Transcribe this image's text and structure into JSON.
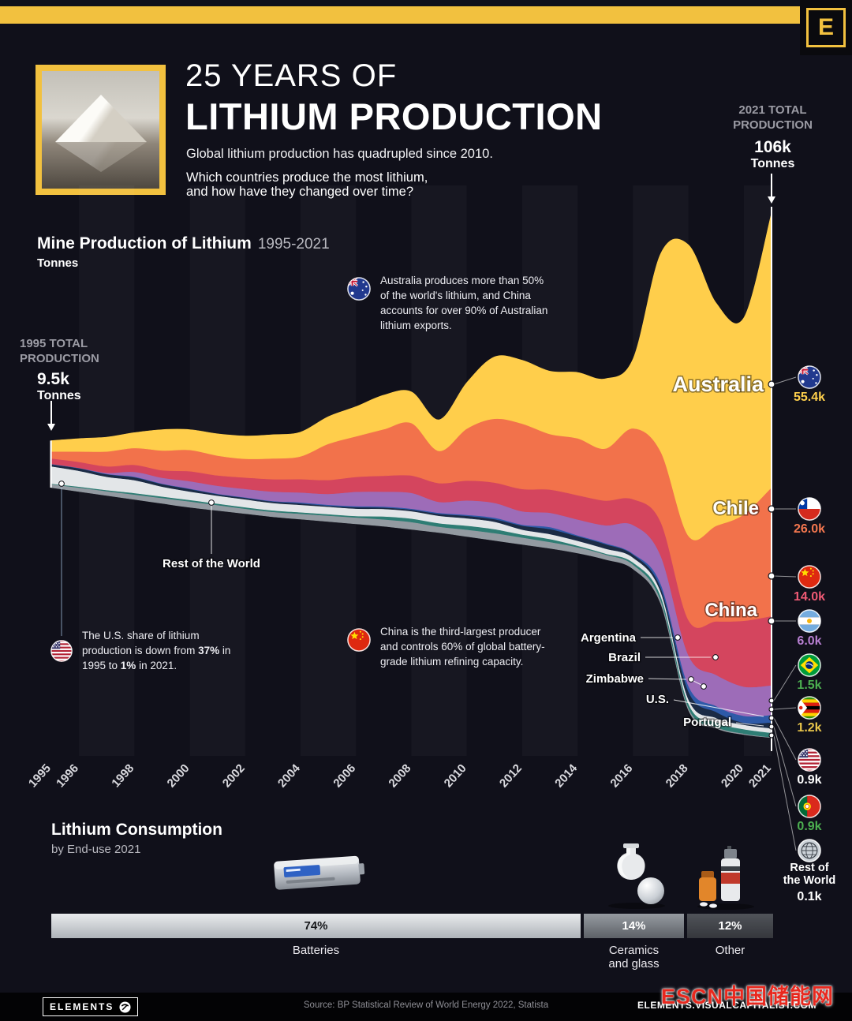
{
  "meta": {
    "brand_letter": "E",
    "accent": "#F2C13F",
    "background": "#10101a"
  },
  "header": {
    "title_line1": "25 YEARS OF",
    "title_line2": "LITHIUM PRODUCTION",
    "subtitle": "Global lithium production has quadrupled since 2010.",
    "question_line1": "Which countries produce the most lithium,",
    "question_line2": "and how have they changed over time?",
    "total_2021": {
      "label_line1": "2021 TOTAL",
      "label_line2": "PRODUCTION",
      "value": "106k",
      "unit": "Tonnes"
    }
  },
  "chart_header": {
    "title": "Mine Production of Lithium",
    "range": "1995-2021",
    "unit": "Tonnes"
  },
  "total_1995": {
    "label_line1": "1995 TOTAL",
    "label_line2": "PRODUCTION",
    "value": "9.5k",
    "unit": "Tonnes"
  },
  "notes": {
    "australia": "Australia produces more than 50% of the world's lithium, and China accounts for over 90% of Australian lithium exports.",
    "china": "China is the third-largest producer and controls 60% of global battery-grade lithium refining capacity.",
    "us": {
      "p1": "The U.S. share of lithium production is down from ",
      "b1": "37%",
      "p2": " in 1995 to ",
      "b2": "1%",
      "p3": " in 2021."
    }
  },
  "chart_data": {
    "type": "area",
    "stacked": true,
    "title": "Mine Production of Lithium",
    "range_label": "1995-2021",
    "unit": "Tonnes (thousands)",
    "x_start": 1995,
    "x_end": 2021,
    "x_ticks": [
      "1995",
      "1996",
      "1998",
      "2000",
      "2002",
      "2004",
      "2006",
      "2008",
      "2010",
      "2012",
      "2014",
      "2016",
      "2018",
      "2020",
      "2021"
    ],
    "totals": {
      "start_year": 1995,
      "start_value_k": 9.5,
      "end_year": 2021,
      "end_value_k": 106
    },
    "legend_world_name_lines": [
      "Rest of",
      "the World"
    ],
    "series": [
      {
        "name": "Australia",
        "flag": "au",
        "color": "#FFCE4B",
        "value_label": "55.4k",
        "value_color": "#FFD04C",
        "values": [
          2.2,
          2.6,
          2.9,
          3.1,
          4.2,
          4.1,
          4.4,
          4.6,
          4.8,
          4.9,
          5.5,
          6.0,
          6.9,
          6.3,
          6.3,
          9.3,
          12.5,
          12.8,
          12.7,
          13.3,
          14.1,
          14.0,
          40.0,
          58.8,
          45.0,
          39.7,
          55.4
        ]
      },
      {
        "name": "Chile",
        "flag": "cl",
        "color": "#F2724B",
        "value_label": "26.0k",
        "value_color": "#F4774F",
        "values": [
          1.4,
          2.1,
          3.0,
          3.4,
          4.0,
          4.3,
          4.0,
          3.8,
          4.2,
          4.6,
          7.3,
          8.2,
          9.4,
          10.6,
          6.5,
          10.5,
          12.9,
          13.2,
          11.2,
          11.5,
          10.5,
          14.3,
          14.2,
          17.0,
          19.3,
          21.5,
          26.0
        ]
      },
      {
        "name": "China",
        "flag": "cn",
        "color": "#D4455E",
        "value_label": "14.0k",
        "value_color": "#EF5A74",
        "values": [
          1.1,
          1.2,
          1.3,
          1.4,
          1.5,
          2.0,
          2.1,
          2.3,
          2.5,
          2.7,
          2.8,
          3.0,
          3.2,
          3.5,
          3.8,
          4.0,
          4.1,
          4.5,
          4.7,
          4.9,
          5.0,
          5.2,
          6.8,
          7.1,
          10.8,
          13.3,
          14.0
        ]
      },
      {
        "name": "Argentina",
        "flag": "ar",
        "color": "#9D6CB8",
        "value_label": "6.0k",
        "value_color": "#B77FD1",
        "values": [
          0.0,
          0.0,
          0.2,
          1.0,
          1.2,
          1.5,
          1.6,
          1.7,
          1.9,
          2.0,
          2.2,
          2.9,
          3.0,
          3.2,
          2.2,
          2.9,
          3.0,
          2.7,
          2.9,
          3.2,
          3.6,
          5.8,
          5.7,
          6.2,
          6.3,
          5.9,
          6.0
        ]
      },
      {
        "name": "Brazil",
        "flag": "br",
        "color": "#2E5AA8",
        "value_label": "1.5k",
        "value_color": "#4CAF50",
        "values": [
          0.1,
          0.1,
          0.1,
          0.1,
          0.1,
          0.1,
          0.1,
          0.1,
          0.1,
          0.2,
          0.2,
          0.2,
          0.2,
          0.2,
          0.2,
          0.2,
          0.3,
          0.2,
          0.4,
          0.2,
          0.2,
          0.2,
          0.8,
          1.1,
          1.2,
          1.4,
          1.5
        ]
      },
      {
        "name": "Zimbabwe",
        "flag": "zw",
        "color": "#1B2B45",
        "value_label": "1.2k",
        "value_color": "#E9C64B",
        "values": [
          0.4,
          0.5,
          0.5,
          0.6,
          0.5,
          0.5,
          0.3,
          0.3,
          0.3,
          0.3,
          0.2,
          0.3,
          0.3,
          0.3,
          0.4,
          0.5,
          0.5,
          0.8,
          1.0,
          0.9,
          0.9,
          0.6,
          0.8,
          1.6,
          1.2,
          0.4,
          1.2
        ]
      },
      {
        "name": "U.S.",
        "flag": "us",
        "color": "#E3E6E8",
        "value_label": "0.9k",
        "value_color": "#FFFFFF",
        "values": [
          3.5,
          3.2,
          2.7,
          2.6,
          2.0,
          1.7,
          1.6,
          1.6,
          1.5,
          1.5,
          1.5,
          1.5,
          1.5,
          1.5,
          1.5,
          1.5,
          1.5,
          1.0,
          1.0,
          1.0,
          1.0,
          1.0,
          0.9,
          0.9,
          0.9,
          0.9,
          0.9
        ]
      },
      {
        "name": "Portugal",
        "flag": "pt",
        "color": "#2E7D74",
        "value_label": "0.9k",
        "value_color": "#4CAF50",
        "values": [
          0.1,
          0.2,
          0.2,
          0.3,
          0.3,
          0.3,
          0.3,
          0.3,
          0.3,
          0.3,
          0.3,
          0.3,
          0.6,
          0.7,
          0.7,
          0.8,
          0.8,
          0.6,
          0.6,
          0.3,
          0.2,
          0.4,
          0.8,
          0.8,
          0.9,
          0.9,
          0.9
        ]
      },
      {
        "name": "Rest of the World",
        "flag": "world",
        "color": "#939AA1",
        "value_label": "0.1k",
        "value_color": "#FFFFFF",
        "values": [
          0.7,
          0.8,
          0.9,
          1.0,
          1.1,
          1.2,
          1.1,
          1.0,
          1.0,
          1.1,
          1.2,
          1.3,
          1.4,
          1.5,
          1.2,
          1.4,
          1.5,
          1.4,
          1.3,
          1.2,
          1.0,
          0.9,
          0.7,
          0.5,
          0.3,
          0.2,
          0.1
        ]
      }
    ]
  },
  "consumption": {
    "title": "Lithium Consumption",
    "subtitle": "by End-use 2021",
    "segments": [
      {
        "label": "Batteries",
        "pct_label": "74%",
        "pct": 74
      },
      {
        "label": "Ceramics and glass",
        "pct_label": "14%",
        "pct": 14
      },
      {
        "label": "Other",
        "pct_label": "12%",
        "pct": 12
      }
    ]
  },
  "footer": {
    "brand": "ELEMENTS",
    "source": "Source: BP Statistical Review of World Energy 2022,  Statista",
    "site": "ELEMENTS.VISUALCAPITALIST.COM",
    "watermark": "ESCN中国储能网"
  }
}
